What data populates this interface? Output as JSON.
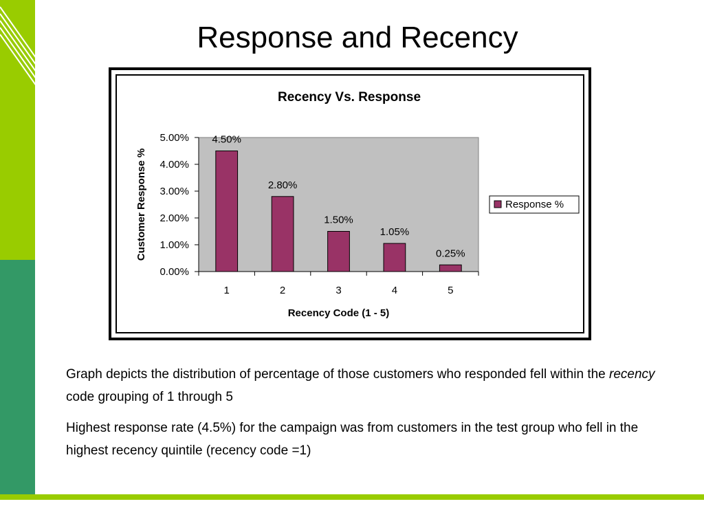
{
  "slide": {
    "title": "Response and Recency",
    "paragraph1": {
      "before": "Graph depicts the distribution of percentage of those customers who responded fell within the ",
      "emphasis": "recency",
      "after": " code grouping of 1 through 5"
    },
    "paragraph2": "Highest response rate (4.5%) for the campaign was from customers in the test group who fell in the highest recency quintile (recency code =1)"
  },
  "colors": {
    "accent_green": "#99cc00",
    "accent_dark_green": "#339966",
    "bar": "#993366",
    "plot_background": "#c0c0c0"
  },
  "chart_data": {
    "type": "bar",
    "title": "Recency Vs. Response",
    "xlabel": "Recency Code (1 - 5)",
    "ylabel": "Customer Response %",
    "categories": [
      "1",
      "2",
      "3",
      "4",
      "5"
    ],
    "series": [
      {
        "name": "Response %",
        "values": [
          4.5,
          2.8,
          1.5,
          1.05,
          0.25
        ]
      }
    ],
    "data_labels": [
      "4.50%",
      "2.80%",
      "1.50%",
      "1.05%",
      "0.25%"
    ],
    "ylim": [
      0,
      5
    ],
    "y_ticks": [
      "0.00%",
      "1.00%",
      "2.00%",
      "3.00%",
      "4.00%",
      "5.00%"
    ],
    "grid": false,
    "legend_position": "right"
  }
}
